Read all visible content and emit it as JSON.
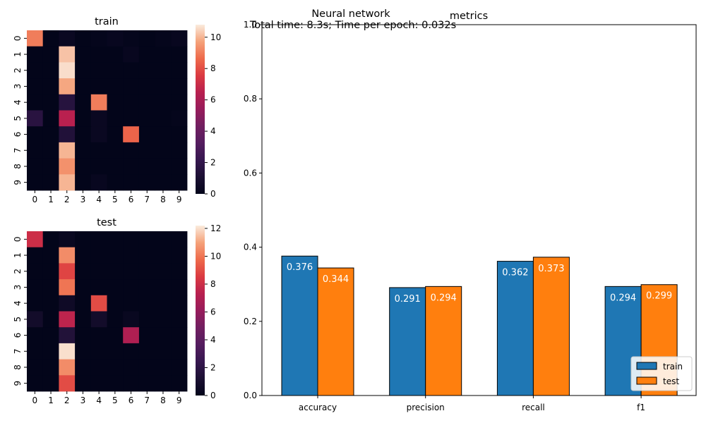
{
  "suptitle": "Neural network",
  "subtitle": "Total time: 8.3s; Time per epoch: 0.032s",
  "chart_data": [
    {
      "type": "heatmap",
      "title": "train",
      "xlabel": "",
      "ylabel": "",
      "x_ticks": [
        "0",
        "1",
        "2",
        "3",
        "4",
        "5",
        "6",
        "7",
        "8",
        "9"
      ],
      "y_ticks": [
        "0",
        "1",
        "2",
        "3",
        "4",
        "5",
        "6",
        "7",
        "8",
        "9"
      ],
      "colorbar": {
        "min": 0,
        "max": 10.8,
        "ticks": [
          0,
          2,
          4,
          6,
          8,
          10
        ],
        "colormap": "rocket"
      },
      "values": [
        [
          9,
          0,
          0.3,
          0,
          0.1,
          0.2,
          0.1,
          0,
          0.1,
          0.2
        ],
        [
          0,
          0,
          10.2,
          0,
          0,
          0,
          0.2,
          0,
          0,
          0
        ],
        [
          0,
          0,
          10.6,
          0,
          0,
          0,
          0,
          0,
          0,
          0
        ],
        [
          0,
          0,
          9.8,
          0,
          0,
          0,
          0,
          0,
          0,
          0
        ],
        [
          0,
          0,
          1.5,
          0,
          9,
          0,
          0,
          0,
          0,
          0
        ],
        [
          1.6,
          0,
          6.5,
          0,
          0.3,
          0,
          0,
          0,
          0,
          0.1
        ],
        [
          0,
          0,
          1.3,
          0,
          0.3,
          0,
          8.5,
          0,
          0,
          0
        ],
        [
          0,
          0,
          10,
          0,
          0,
          0,
          0,
          0,
          0,
          0
        ],
        [
          0,
          0,
          9.4,
          0,
          0,
          0,
          0,
          0,
          0,
          0
        ],
        [
          0,
          0,
          10,
          0,
          0.2,
          0,
          0,
          0,
          0,
          0
        ]
      ]
    },
    {
      "type": "heatmap",
      "title": "test",
      "xlabel": "",
      "ylabel": "",
      "x_ticks": [
        "0",
        "1",
        "2",
        "3",
        "4",
        "5",
        "6",
        "7",
        "8",
        "9"
      ],
      "y_ticks": [
        "0",
        "1",
        "2",
        "3",
        "4",
        "5",
        "6",
        "7",
        "8",
        "9"
      ],
      "colorbar": {
        "min": 0,
        "max": 12.2,
        "ticks": [
          0,
          2,
          4,
          6,
          8,
          10,
          12
        ],
        "colormap": "rocket"
      },
      "values": [
        [
          8,
          0,
          0.3,
          0,
          0,
          0,
          0,
          0,
          0,
          0
        ],
        [
          0,
          0,
          10.5,
          0,
          0,
          0,
          0,
          0,
          0,
          0
        ],
        [
          0,
          0,
          8.8,
          0,
          0,
          0,
          0,
          0,
          0,
          0
        ],
        [
          0,
          0,
          10,
          0,
          0,
          0,
          0,
          0,
          0,
          0
        ],
        [
          0,
          0,
          0.6,
          0,
          9,
          0,
          0,
          0,
          0,
          0
        ],
        [
          0.8,
          0,
          7.5,
          0,
          0.8,
          0,
          0.3,
          0,
          0,
          0
        ],
        [
          0,
          0,
          1.5,
          0,
          0,
          0,
          7,
          0,
          0,
          0
        ],
        [
          0,
          0,
          12,
          0,
          0,
          0,
          0,
          0,
          0,
          0
        ],
        [
          0,
          0,
          10.5,
          0,
          0,
          0,
          0,
          0,
          0,
          0
        ],
        [
          0,
          0,
          9,
          0,
          0,
          0,
          0,
          0,
          0,
          0
        ]
      ]
    },
    {
      "type": "bar",
      "title": "metrics",
      "xlabel": "",
      "ylabel": "",
      "categories": [
        "accuracy",
        "precision",
        "recall",
        "f1"
      ],
      "series": [
        {
          "name": "train",
          "values": [
            0.376,
            0.291,
            0.362,
            0.294
          ],
          "color": "#1f77b4"
        },
        {
          "name": "test",
          "values": [
            0.344,
            0.294,
            0.373,
            0.299
          ],
          "color": "#ff7f0e"
        }
      ],
      "ylim": [
        0,
        1.0
      ],
      "y_ticks": [
        0.0,
        0.2,
        0.4,
        0.6,
        0.8,
        1.0
      ],
      "y_tick_labels": [
        "0.0",
        "0.2",
        "0.4",
        "0.6",
        "0.8",
        "1.0"
      ],
      "legend": "lower-right",
      "grid": false
    }
  ]
}
